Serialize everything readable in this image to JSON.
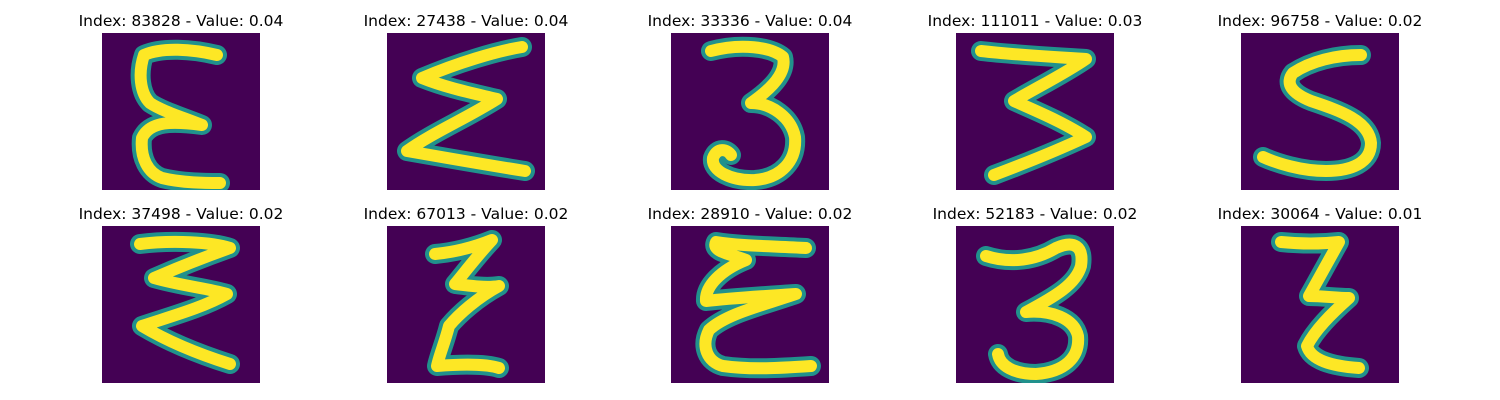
{
  "colors": {
    "background": "#440154",
    "stroke_edge": "#21918c",
    "stroke_core": "#fde725"
  },
  "panels": [
    {
      "title": "Index: 83828 - Value: 0.04",
      "glyph": "epsilon-tall-icon"
    },
    {
      "title": "Index: 27438 - Value: 0.04",
      "glyph": "sigma-like-icon"
    },
    {
      "title": "Index: 33336 - Value: 0.04",
      "glyph": "digit-three-icon"
    },
    {
      "title": "Index: 111011 - Value: 0.03",
      "glyph": "digit-three-flat-icon"
    },
    {
      "title": "Index: 96758 - Value: 0.02",
      "glyph": "letter-s-icon"
    },
    {
      "title": "Index: 37498 - Value: 0.02",
      "glyph": "zigzag-sigma-icon"
    },
    {
      "title": "Index: 67013 - Value: 0.02",
      "glyph": "narrow-epsilon-icon"
    },
    {
      "title": "Index: 28910 - Value: 0.02",
      "glyph": "wide-epsilon-icon"
    },
    {
      "title": "Index: 52183 - Value: 0.02",
      "glyph": "digit-three-round-icon"
    },
    {
      "title": "Index: 30064 - Value: 0.01",
      "glyph": "narrow-epsilon-icon"
    }
  ]
}
